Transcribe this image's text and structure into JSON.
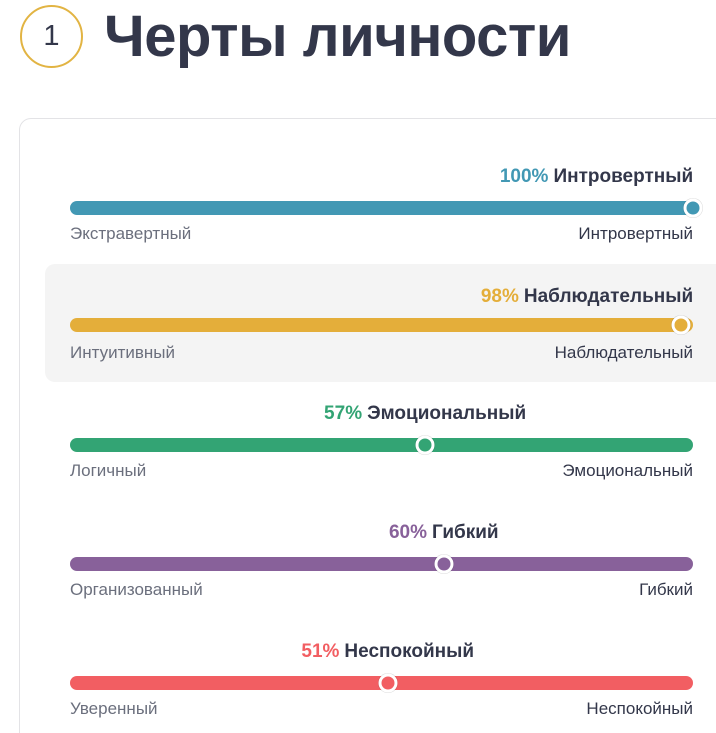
{
  "header": {
    "step_number": "1",
    "title": "Черты личности"
  },
  "traits": [
    {
      "percent_label": "100%",
      "result_label": "Интровертный",
      "value": 100,
      "left_label": "Экстравертный",
      "right_label": "Интровертный",
      "color": "#4298b4",
      "highlighted": false
    },
    {
      "percent_label": "98%",
      "result_label": "Наблюдательный",
      "value": 98,
      "left_label": "Интуитивный",
      "right_label": "Наблюдательный",
      "color": "#e4ae3a",
      "highlighted": true
    },
    {
      "percent_label": "57%",
      "result_label": "Эмоциональный",
      "value": 57,
      "left_label": "Логичный",
      "right_label": "Эмоциональный",
      "color": "#33a474",
      "highlighted": false
    },
    {
      "percent_label": "60%",
      "result_label": "Гибкий",
      "value": 60,
      "left_label": "Организованный",
      "right_label": "Гибкий",
      "color": "#88619a",
      "highlighted": false
    },
    {
      "percent_label": "51%",
      "result_label": "Неспокойный",
      "value": 51,
      "left_label": "Уверенный",
      "right_label": "Неспокойный",
      "color": "#f25e62",
      "highlighted": false
    }
  ]
}
